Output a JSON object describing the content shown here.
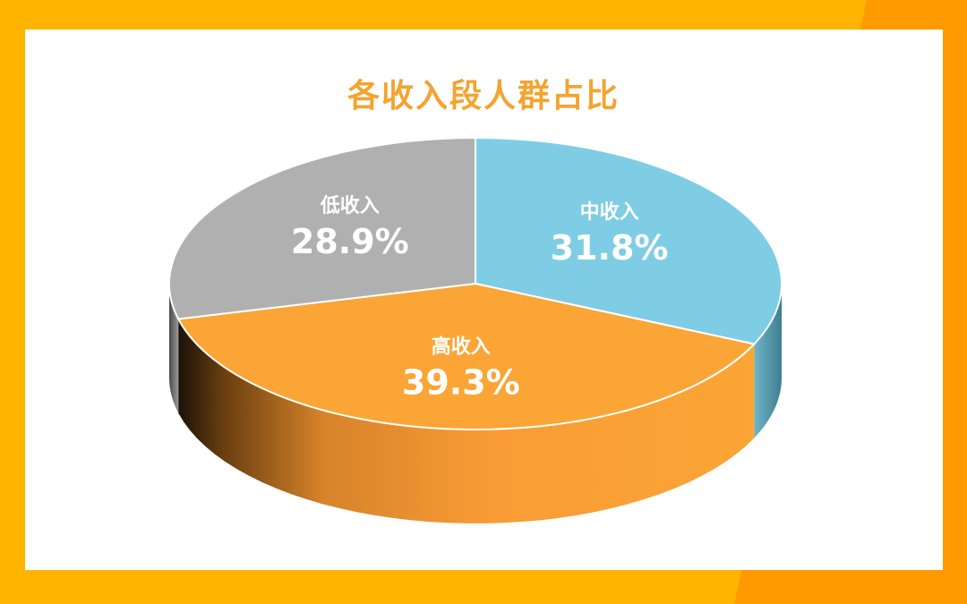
{
  "colors": {
    "background": "#FFB400",
    "accent_stripe": "#FF9A00",
    "title": "#F5A32F",
    "high": "#FAA535",
    "mid": "#7ECDE4",
    "low": "#B0B0B0"
  },
  "chart_data": {
    "type": "pie",
    "style": "3d",
    "title": "各收入段人群占比",
    "slices": [
      {
        "label": "高收入",
        "value": 39.3,
        "display": "39.3%",
        "color_key": "high"
      },
      {
        "label": "中收入",
        "value": 31.8,
        "display": "31.8%",
        "color_key": "mid"
      },
      {
        "label": "低收入",
        "value": 28.9,
        "display": "28.9%",
        "color_key": "low"
      }
    ]
  }
}
